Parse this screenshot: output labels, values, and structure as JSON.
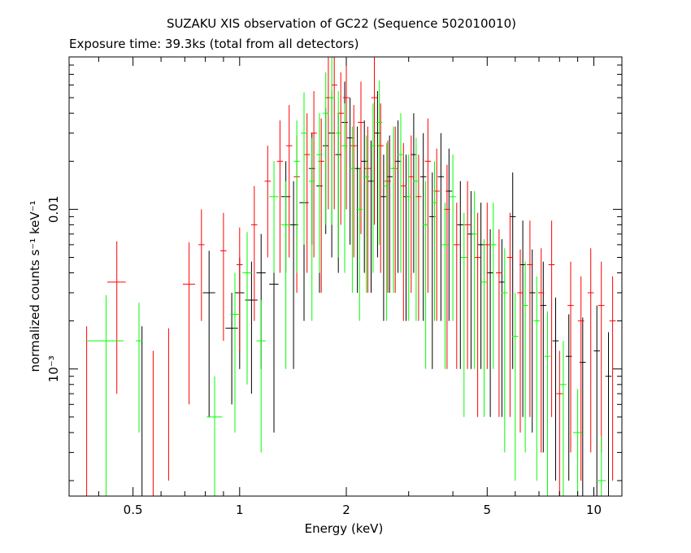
{
  "chart_data": {
    "type": "scatter",
    "title": "SUZAKU XIS observation of GC22 (Sequence 502010010)",
    "subtitle": "Exposure time: 39.3ks (total from all detectors)",
    "xlabel": "Energy (keV)",
    "ylabel": "normalized counts s⁻¹ keV⁻¹",
    "xscale": "log",
    "yscale": "log",
    "xlim": [
      0.33,
      12.0
    ],
    "ylim": [
      0.00016,
      0.09
    ],
    "x_ticks": [
      {
        "value": 0.5,
        "label": "0.5"
      },
      {
        "value": 1,
        "label": "1"
      },
      {
        "value": 2,
        "label": "2"
      },
      {
        "value": 5,
        "label": "5"
      },
      {
        "value": 10,
        "label": "10"
      }
    ],
    "y_ticks": [
      {
        "value": 0.001,
        "label": "10⁻³"
      },
      {
        "value": 0.01,
        "label": "0.01"
      }
    ],
    "grid": false,
    "series": [
      {
        "color": "#000000",
        "points": [
          [
            0.53,
            0.001,
            0.0,
            0.00085
          ],
          [
            0.82,
            0.003,
            0.04,
            0.0025
          ],
          [
            0.95,
            0.0018,
            0.04,
            0.0012
          ],
          [
            1.0,
            0.003,
            0.03,
            0.002
          ],
          [
            1.08,
            0.0027,
            0.04,
            0.002
          ],
          [
            1.15,
            0.004,
            0.03,
            0.003
          ],
          [
            1.25,
            0.0034,
            0.03,
            0.003
          ],
          [
            1.35,
            0.012,
            0.03,
            0.008
          ],
          [
            1.42,
            0.008,
            0.03,
            0.007
          ],
          [
            1.52,
            0.011,
            0.03,
            0.009
          ],
          [
            1.6,
            0.018,
            0.02,
            0.012
          ],
          [
            1.68,
            0.014,
            0.02,
            0.011
          ],
          [
            1.75,
            0.025,
            0.02,
            0.018
          ],
          [
            1.82,
            0.03,
            0.02,
            0.025
          ],
          [
            1.9,
            0.022,
            0.02,
            0.018
          ],
          [
            1.98,
            0.035,
            0.02,
            0.028
          ],
          [
            2.05,
            0.028,
            0.02,
            0.022
          ],
          [
            2.15,
            0.018,
            0.02,
            0.015
          ],
          [
            2.25,
            0.02,
            0.02,
            0.016
          ],
          [
            2.35,
            0.015,
            0.02,
            0.012
          ],
          [
            2.45,
            0.03,
            0.02,
            0.025
          ],
          [
            2.55,
            0.012,
            0.02,
            0.01
          ],
          [
            2.65,
            0.016,
            0.02,
            0.013
          ],
          [
            2.8,
            0.02,
            0.02,
            0.016
          ],
          [
            2.95,
            0.012,
            0.02,
            0.01
          ],
          [
            3.1,
            0.022,
            0.02,
            0.018
          ],
          [
            3.3,
            0.016,
            0.02,
            0.014
          ],
          [
            3.5,
            0.009,
            0.02,
            0.008
          ],
          [
            3.7,
            0.016,
            0.02,
            0.014
          ],
          [
            3.9,
            0.013,
            0.02,
            0.011
          ],
          [
            4.2,
            0.008,
            0.02,
            0.007
          ],
          [
            4.5,
            0.007,
            0.02,
            0.006
          ],
          [
            4.8,
            0.006,
            0.02,
            0.005
          ],
          [
            5.1,
            0.004,
            0.02,
            0.0035
          ],
          [
            5.5,
            0.0035,
            0.02,
            0.003
          ],
          [
            5.9,
            0.009,
            0.02,
            0.008
          ],
          [
            6.3,
            0.0045,
            0.02,
            0.004
          ],
          [
            6.7,
            0.003,
            0.02,
            0.0026
          ],
          [
            7.2,
            0.0025,
            0.02,
            0.0022
          ],
          [
            7.8,
            0.0015,
            0.02,
            0.0013
          ],
          [
            8.5,
            0.0012,
            0.02,
            0.001
          ],
          [
            9.3,
            0.0011,
            0.02,
            0.001
          ],
          [
            10.2,
            0.0013,
            0.02,
            0.0012
          ],
          [
            11.0,
            0.0009,
            0.02,
            0.0008
          ]
        ]
      },
      {
        "color": "#ff0000",
        "points": [
          [
            0.37,
            0.001,
            0.0,
            0.00085
          ],
          [
            0.45,
            0.0035,
            0.06,
            0.0028
          ],
          [
            0.57,
            0.0007,
            0.0,
            0.0006
          ],
          [
            0.63,
            0.001,
            0.0,
            0.0008
          ],
          [
            0.72,
            0.0034,
            0.04,
            0.0028
          ],
          [
            0.78,
            0.006,
            0.02,
            0.004
          ],
          [
            0.9,
            0.0055,
            0.02,
            0.004
          ],
          [
            1.0,
            0.0045,
            0.02,
            0.0032
          ],
          [
            1.1,
            0.008,
            0.02,
            0.006
          ],
          [
            1.2,
            0.015,
            0.02,
            0.01
          ],
          [
            1.3,
            0.02,
            0.02,
            0.016
          ],
          [
            1.38,
            0.025,
            0.02,
            0.02
          ],
          [
            1.45,
            0.016,
            0.02,
            0.013
          ],
          [
            1.55,
            0.022,
            0.02,
            0.018
          ],
          [
            1.62,
            0.03,
            0.02,
            0.025
          ],
          [
            1.7,
            0.02,
            0.02,
            0.017
          ],
          [
            1.78,
            0.05,
            0.02,
            0.04
          ],
          [
            1.85,
            0.06,
            0.02,
            0.05
          ],
          [
            1.93,
            0.04,
            0.02,
            0.032
          ],
          [
            2.0,
            0.05,
            0.02,
            0.04
          ],
          [
            2.1,
            0.025,
            0.02,
            0.02
          ],
          [
            2.2,
            0.035,
            0.02,
            0.028
          ],
          [
            2.3,
            0.018,
            0.02,
            0.015
          ],
          [
            2.4,
            0.05,
            0.02,
            0.042
          ],
          [
            2.5,
            0.025,
            0.02,
            0.021
          ],
          [
            2.62,
            0.015,
            0.02,
            0.012
          ],
          [
            2.75,
            0.018,
            0.02,
            0.015
          ],
          [
            2.9,
            0.014,
            0.02,
            0.012
          ],
          [
            3.05,
            0.016,
            0.02,
            0.013
          ],
          [
            3.2,
            0.012,
            0.02,
            0.01
          ],
          [
            3.4,
            0.02,
            0.02,
            0.017
          ],
          [
            3.6,
            0.013,
            0.02,
            0.011
          ],
          [
            3.85,
            0.01,
            0.02,
            0.009
          ],
          [
            4.1,
            0.006,
            0.02,
            0.005
          ],
          [
            4.4,
            0.008,
            0.02,
            0.007
          ],
          [
            4.7,
            0.005,
            0.02,
            0.0045
          ],
          [
            5.0,
            0.006,
            0.02,
            0.005
          ],
          [
            5.4,
            0.004,
            0.02,
            0.0035
          ],
          [
            5.8,
            0.005,
            0.02,
            0.0045
          ],
          [
            6.2,
            0.003,
            0.02,
            0.0026
          ],
          [
            6.6,
            0.0045,
            0.02,
            0.004
          ],
          [
            7.1,
            0.003,
            0.02,
            0.0027
          ],
          [
            7.6,
            0.0045,
            0.02,
            0.004
          ],
          [
            8.0,
            0.0007,
            0.02,
            0.0006
          ],
          [
            8.6,
            0.0025,
            0.02,
            0.0022
          ],
          [
            9.2,
            0.002,
            0.02,
            0.0018
          ],
          [
            9.8,
            0.003,
            0.02,
            0.0027
          ],
          [
            10.5,
            0.0025,
            0.02,
            0.0022
          ],
          [
            11.3,
            0.002,
            0.02,
            0.0018
          ]
        ]
      },
      {
        "color": "#00ff00",
        "points": [
          [
            0.42,
            0.0015,
            0.12,
            0.0014
          ],
          [
            0.52,
            0.0015,
            0.02,
            0.0011
          ],
          [
            0.85,
            0.0005,
            0.05,
            0.0004
          ],
          [
            0.97,
            0.0022,
            0.03,
            0.0018
          ],
          [
            1.05,
            0.004,
            0.03,
            0.0032
          ],
          [
            1.15,
            0.0015,
            0.03,
            0.0012
          ],
          [
            1.25,
            0.012,
            0.03,
            0.008
          ],
          [
            1.35,
            0.008,
            0.03,
            0.007
          ],
          [
            1.45,
            0.02,
            0.02,
            0.016
          ],
          [
            1.52,
            0.03,
            0.02,
            0.024
          ],
          [
            1.6,
            0.015,
            0.02,
            0.013
          ],
          [
            1.68,
            0.022,
            0.02,
            0.018
          ],
          [
            1.75,
            0.04,
            0.02,
            0.032
          ],
          [
            1.82,
            0.05,
            0.02,
            0.042
          ],
          [
            1.9,
            0.03,
            0.02,
            0.025
          ],
          [
            1.98,
            0.025,
            0.02,
            0.021
          ],
          [
            2.08,
            0.018,
            0.02,
            0.015
          ],
          [
            2.18,
            0.01,
            0.02,
            0.008
          ],
          [
            2.28,
            0.016,
            0.02,
            0.013
          ],
          [
            2.38,
            0.025,
            0.02,
            0.021
          ],
          [
            2.48,
            0.035,
            0.02,
            0.029
          ],
          [
            2.6,
            0.014,
            0.02,
            0.012
          ],
          [
            2.72,
            0.018,
            0.02,
            0.015
          ],
          [
            2.85,
            0.022,
            0.02,
            0.018
          ],
          [
            3.0,
            0.012,
            0.02,
            0.01
          ],
          [
            3.15,
            0.015,
            0.02,
            0.013
          ],
          [
            3.35,
            0.008,
            0.02,
            0.007
          ],
          [
            3.55,
            0.011,
            0.02,
            0.009
          ],
          [
            3.8,
            0.006,
            0.02,
            0.005
          ],
          [
            4.0,
            0.012,
            0.02,
            0.01
          ],
          [
            4.3,
            0.005,
            0.02,
            0.0045
          ],
          [
            4.6,
            0.007,
            0.02,
            0.006
          ],
          [
            4.9,
            0.0035,
            0.02,
            0.003
          ],
          [
            5.2,
            0.006,
            0.02,
            0.005
          ],
          [
            5.6,
            0.003,
            0.02,
            0.0027
          ],
          [
            6.0,
            0.0016,
            0.02,
            0.0014
          ],
          [
            6.4,
            0.0025,
            0.02,
            0.0022
          ],
          [
            6.9,
            0.002,
            0.02,
            0.0018
          ],
          [
            7.4,
            0.0012,
            0.02,
            0.0011
          ],
          [
            8.2,
            0.0008,
            0.02,
            0.0007
          ],
          [
            9.0,
            0.0004,
            0.03,
            0.00035
          ],
          [
            10.5,
            0.0002,
            0.03,
            0.00018
          ]
        ]
      }
    ]
  }
}
